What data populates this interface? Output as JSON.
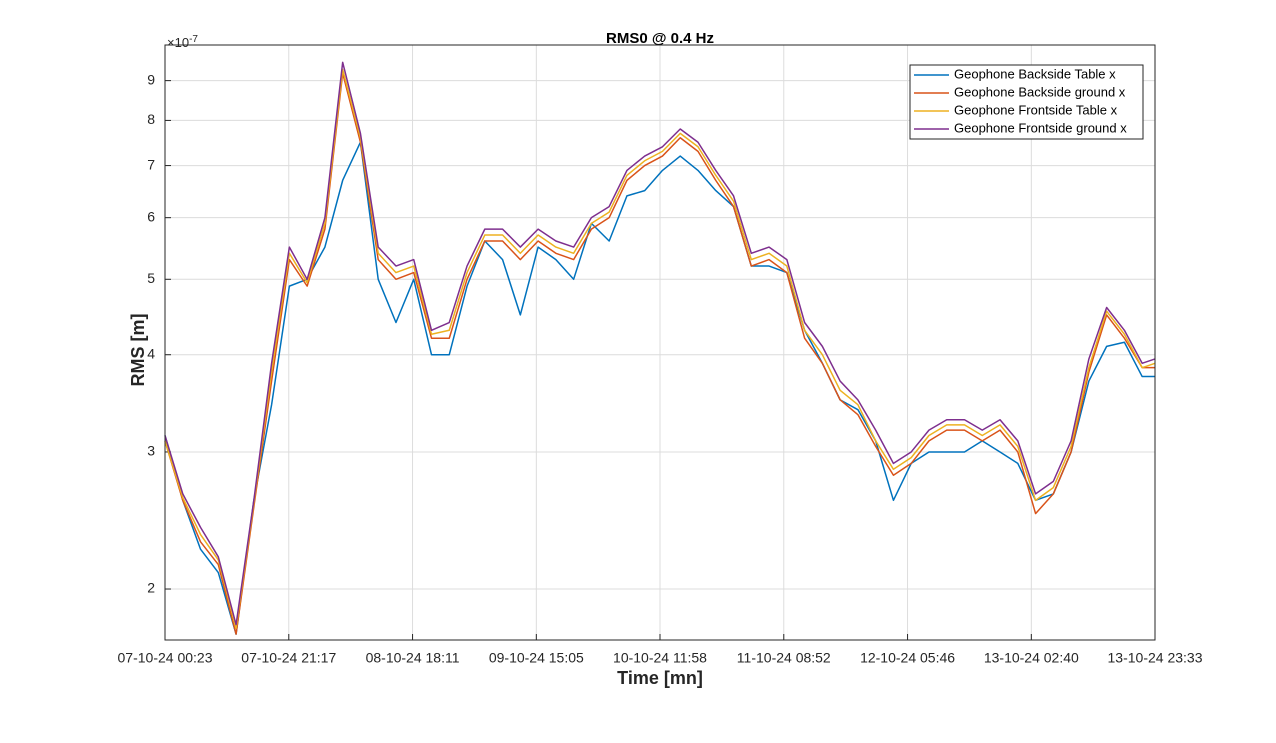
{
  "chart_data": {
    "type": "line",
    "title": "RMS0 @ 0.4 Hz",
    "xlabel": "Time [mn]",
    "ylabel": "RMS [m]",
    "y_multiplier": {
      "base": "×10",
      "exponent": "-7"
    },
    "yscale": "log",
    "grid": true,
    "legend": "upper right",
    "x": [
      "2024-10-07T00:23",
      "2024-10-07T03:23",
      "2024-10-07T06:23",
      "2024-10-07T09:23",
      "2024-10-07T12:23",
      "2024-10-07T15:23",
      "2024-10-07T18:23",
      "2024-10-07T21:23",
      "2024-10-08T00:23",
      "2024-10-08T03:23",
      "2024-10-08T06:23",
      "2024-10-08T09:23",
      "2024-10-08T12:23",
      "2024-10-08T15:23",
      "2024-10-08T18:23",
      "2024-10-08T21:23",
      "2024-10-09T00:23",
      "2024-10-09T03:23",
      "2024-10-09T06:23",
      "2024-10-09T09:23",
      "2024-10-09T12:23",
      "2024-10-09T15:23",
      "2024-10-09T18:23",
      "2024-10-09T21:23",
      "2024-10-10T00:23",
      "2024-10-10T03:23",
      "2024-10-10T06:23",
      "2024-10-10T09:23",
      "2024-10-10T12:23",
      "2024-10-10T15:23",
      "2024-10-10T18:23",
      "2024-10-10T21:23",
      "2024-10-11T00:23",
      "2024-10-11T03:23",
      "2024-10-11T06:23",
      "2024-10-11T09:23",
      "2024-10-11T12:23",
      "2024-10-11T15:23",
      "2024-10-11T18:23",
      "2024-10-11T21:23",
      "2024-10-12T00:23",
      "2024-10-12T03:23",
      "2024-10-12T06:23",
      "2024-10-12T09:23",
      "2024-10-12T12:23",
      "2024-10-12T15:23",
      "2024-10-12T18:23",
      "2024-10-12T21:23",
      "2024-10-13T00:23",
      "2024-10-13T03:23",
      "2024-10-13T06:23",
      "2024-10-13T09:23",
      "2024-10-13T12:23",
      "2024-10-13T15:23",
      "2024-10-13T18:23",
      "2024-10-13T21:23",
      "2024-10-13T23:33"
    ],
    "series": [
      {
        "name": "Geophone Backside Table x",
        "color": "#0072BD",
        "values": [
          3.15e-07,
          2.6e-07,
          2.25e-07,
          2.1e-07,
          1.75e-07,
          2.6e-07,
          3.45e-07,
          4.9e-07,
          5e-07,
          5.5e-07,
          6.7e-07,
          7.5e-07,
          5e-07,
          4.4e-07,
          5e-07,
          4e-07,
          4e-07,
          4.9e-07,
          5.6e-07,
          5.3e-07,
          4.5e-07,
          5.5e-07,
          5.3e-07,
          5e-07,
          5.9e-07,
          5.6e-07,
          6.4e-07,
          6.5e-07,
          6.9e-07,
          7.2e-07,
          6.9e-07,
          6.5e-07,
          6.2e-07,
          5.2e-07,
          5.2e-07,
          5.1e-07,
          4.3e-07,
          3.9e-07,
          3.5e-07,
          3.4e-07,
          3.1e-07,
          2.6e-07,
          2.9e-07,
          3e-07,
          3e-07,
          3e-07,
          3.1e-07,
          3e-07,
          2.9e-07,
          2.6e-07,
          2.65e-07,
          3e-07,
          3.7e-07,
          4.1e-07,
          4.15e-07,
          3.75e-07,
          3.75e-07
        ]
      },
      {
        "name": "Geophone Backside ground x",
        "color": "#D95319",
        "values": [
          3.1e-07,
          2.6e-07,
          2.3e-07,
          2.15e-07,
          1.75e-07,
          2.55e-07,
          3.7e-07,
          5.3e-07,
          4.9e-07,
          5.8e-07,
          9.2e-07,
          7.5e-07,
          5.3e-07,
          5e-07,
          5.1e-07,
          4.2e-07,
          4.2e-07,
          5e-07,
          5.6e-07,
          5.6e-07,
          5.3e-07,
          5.6e-07,
          5.4e-07,
          5.3e-07,
          5.8e-07,
          6e-07,
          6.7e-07,
          7e-07,
          7.2e-07,
          7.6e-07,
          7.3e-07,
          6.7e-07,
          6.2e-07,
          5.2e-07,
          5.3e-07,
          5.1e-07,
          4.2e-07,
          3.9e-07,
          3.5e-07,
          3.35e-07,
          3.05e-07,
          2.8e-07,
          2.9e-07,
          3.1e-07,
          3.2e-07,
          3.2e-07,
          3.1e-07,
          3.2e-07,
          3e-07,
          2.5e-07,
          2.65e-07,
          3e-07,
          3.8e-07,
          4.5e-07,
          4.2e-07,
          3.85e-07,
          3.85e-07
        ]
      },
      {
        "name": "Geophone Frontside Table x",
        "color": "#EDB120",
        "values": [
          3.1e-07,
          2.62e-07,
          2.35e-07,
          2.18e-07,
          1.78e-07,
          2.58e-07,
          3.8e-07,
          5.4e-07,
          4.95e-07,
          5.9e-07,
          9.3e-07,
          7.6e-07,
          5.4e-07,
          5.1e-07,
          5.2e-07,
          4.25e-07,
          4.3e-07,
          5.1e-07,
          5.7e-07,
          5.7e-07,
          5.4e-07,
          5.7e-07,
          5.5e-07,
          5.4e-07,
          5.9e-07,
          6.1e-07,
          6.8e-07,
          7.1e-07,
          7.3e-07,
          7.7e-07,
          7.4e-07,
          6.8e-07,
          6.3e-07,
          5.3e-07,
          5.4e-07,
          5.2e-07,
          4.3e-07,
          4e-07,
          3.6e-07,
          3.45e-07,
          3.1e-07,
          2.85e-07,
          2.95e-07,
          3.15e-07,
          3.25e-07,
          3.25e-07,
          3.15e-07,
          3.25e-07,
          3.05e-07,
          2.6e-07,
          2.7e-07,
          3.05e-07,
          3.85e-07,
          4.55e-07,
          4.25e-07,
          3.85e-07,
          3.9e-07
        ]
      },
      {
        "name": "Geophone Frontside ground x",
        "color": "#7E2F8E",
        "values": [
          3.15e-07,
          2.65e-07,
          2.4e-07,
          2.2e-07,
          1.8e-07,
          2.6e-07,
          3.9e-07,
          5.5e-07,
          5e-07,
          6e-07,
          9.5e-07,
          7.7e-07,
          5.5e-07,
          5.2e-07,
          5.3e-07,
          4.3e-07,
          4.4e-07,
          5.2e-07,
          5.8e-07,
          5.8e-07,
          5.5e-07,
          5.8e-07,
          5.6e-07,
          5.5e-07,
          6e-07,
          6.2e-07,
          6.9e-07,
          7.2e-07,
          7.4e-07,
          7.8e-07,
          7.5e-07,
          6.9e-07,
          6.4e-07,
          5.4e-07,
          5.5e-07,
          5.3e-07,
          4.4e-07,
          4.1e-07,
          3.7e-07,
          3.5e-07,
          3.2e-07,
          2.9e-07,
          3e-07,
          3.2e-07,
          3.3e-07,
          3.3e-07,
          3.2e-07,
          3.3e-07,
          3.1e-07,
          2.65e-07,
          2.75e-07,
          3.1e-07,
          3.95e-07,
          4.6e-07,
          4.3e-07,
          3.9e-07,
          3.95e-07
        ]
      }
    ],
    "xlim": [
      "2024-10-07T00:23",
      "2024-10-13T23:33"
    ],
    "xticks": [
      {
        "value": "2024-10-07T00:23",
        "label": "07-10-24 00:23"
      },
      {
        "value": "2024-10-07T21:17",
        "label": "07-10-24 21:17"
      },
      {
        "value": "2024-10-08T18:11",
        "label": "08-10-24 18:11"
      },
      {
        "value": "2024-10-09T15:05",
        "label": "09-10-24 15:05"
      },
      {
        "value": "2024-10-10T11:58",
        "label": "10-10-24 11:58"
      },
      {
        "value": "2024-10-11T08:52",
        "label": "11-10-24 08:52"
      },
      {
        "value": "2024-10-12T05:46",
        "label": "12-10-24 05:46"
      },
      {
        "value": "2024-10-13T02:40",
        "label": "13-10-24 02:40"
      },
      {
        "value": "2024-10-13T23:33",
        "label": "13-10-24 23:33"
      }
    ],
    "ylim": [
      1.72e-07,
      1e-06
    ],
    "yticks": [
      {
        "value": 2e-07,
        "label": "2"
      },
      {
        "value": 3e-07,
        "label": "3"
      },
      {
        "value": 4e-07,
        "label": "4"
      },
      {
        "value": 5e-07,
        "label": "5"
      },
      {
        "value": 6e-07,
        "label": "6"
      },
      {
        "value": 7e-07,
        "label": "7"
      },
      {
        "value": 8e-07,
        "label": "8"
      },
      {
        "value": 9e-07,
        "label": "9"
      }
    ]
  }
}
